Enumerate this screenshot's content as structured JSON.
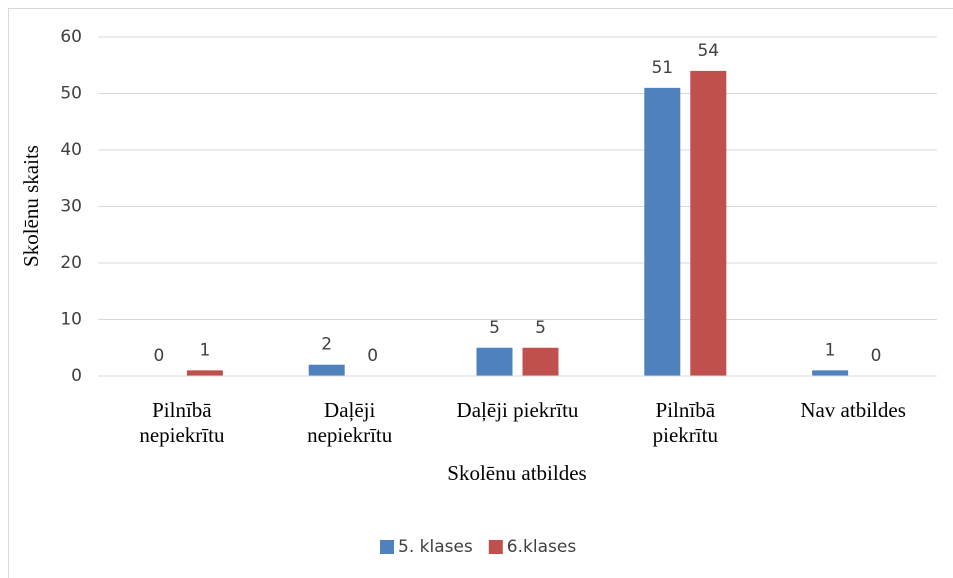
{
  "chart_data": {
    "type": "bar",
    "xlabel": "Skolēnu atbildes",
    "ylabel": "Skolēnu skaits",
    "categories": [
      "Pilnībā nepiekrītu",
      "Daļēji nepiekrītu",
      "Daļēji piekrītu",
      "Pilnībā piekrītu",
      "Nav atbildes"
    ],
    "series": [
      {
        "name": "5. klases",
        "color": "#4f81bd",
        "values": [
          0,
          2,
          5,
          51,
          1
        ]
      },
      {
        "name": "6.klases",
        "color": "#c0504d",
        "values": [
          1,
          0,
          5,
          54,
          0
        ]
      }
    ],
    "ylim": [
      0,
      60
    ],
    "yticks": [
      0,
      10,
      20,
      30,
      40,
      50,
      60
    ],
    "grid": true,
    "legend": "bottom"
  }
}
